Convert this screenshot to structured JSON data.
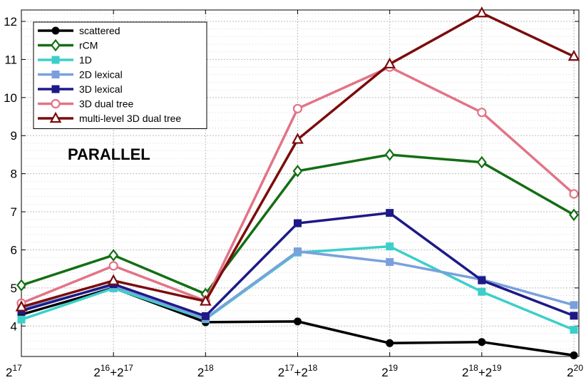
{
  "chart_data": {
    "type": "line",
    "annotation": "PARALLEL",
    "x_categories": [
      {
        "base": "2",
        "exp": "17"
      },
      {
        "base": "2",
        "exp": "16",
        "plus": "+2",
        "exp2": "17"
      },
      {
        "base": "2",
        "exp": "18"
      },
      {
        "base": "2",
        "exp": "17",
        "plus": "+2",
        "exp2": "18"
      },
      {
        "base": "2",
        "exp": "19"
      },
      {
        "base": "2",
        "exp": "18",
        "plus": "+2",
        "exp2": "19"
      },
      {
        "base": "2",
        "exp": "20"
      }
    ],
    "x_positions": [
      0,
      1,
      2,
      3,
      4,
      5,
      6
    ],
    "ylim": [
      3.2,
      12.3
    ],
    "yticks": [
      4,
      5,
      6,
      7,
      8,
      9,
      10,
      11,
      12
    ],
    "grid": true,
    "legend_position": "top-left",
    "series": [
      {
        "name": "scattered",
        "color": "#000000",
        "marker": "dot",
        "values": [
          4.3,
          5.0,
          4.1,
          4.12,
          3.55,
          3.58,
          3.23
        ]
      },
      {
        "name": "rCM",
        "color": "#136e13",
        "marker": "diamond",
        "values": [
          5.07,
          5.86,
          4.84,
          8.07,
          8.5,
          8.3,
          6.92
        ]
      },
      {
        "name": "1D",
        "color": "#3ccfca",
        "marker": "square",
        "values": [
          4.17,
          4.99,
          4.18,
          5.93,
          6.09,
          4.9,
          3.9
        ]
      },
      {
        "name": "2D lexical",
        "color": "#7aa0dc",
        "marker": "square",
        "values": [
          4.45,
          5.07,
          4.2,
          5.96,
          5.68,
          5.22,
          4.55
        ]
      },
      {
        "name": "3D lexical",
        "color": "#1e1987",
        "marker": "square",
        "values": [
          4.4,
          5.1,
          4.26,
          6.7,
          6.97,
          5.2,
          4.27
        ]
      },
      {
        "name": "3D dual tree",
        "color": "#e27487",
        "marker": "circle",
        "values": [
          4.6,
          5.58,
          4.66,
          9.71,
          10.8,
          9.61,
          7.47
        ]
      },
      {
        "name": "multi-level 3D dual tree",
        "color": "#7b0c0c",
        "marker": "triangle",
        "values": [
          4.5,
          5.19,
          4.65,
          8.9,
          10.88,
          12.22,
          11.08
        ]
      }
    ]
  }
}
